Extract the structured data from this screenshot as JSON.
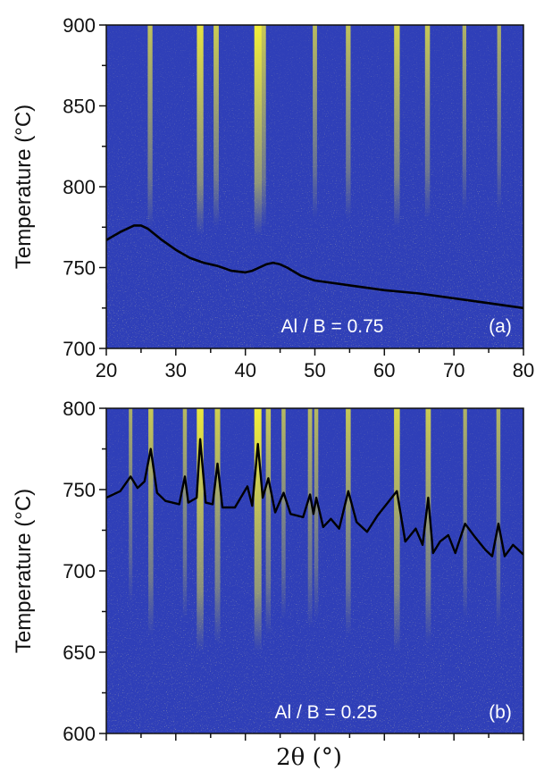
{
  "colors": {
    "background": "#2f3fb8",
    "peak": "#f2ee3a",
    "trace": "#000000"
  },
  "chart_data": [
    {
      "type": "heatmap",
      "panel_label": "(a)",
      "annotation": "Al / B = 0.75",
      "xlabel": "",
      "ylabel": "Temperature (°C)",
      "xlim": [
        20,
        80
      ],
      "ylim": [
        700,
        900
      ],
      "xticks": [
        "20",
        "30",
        "40",
        "50",
        "60",
        "70",
        "80"
      ],
      "yticks": [
        "700",
        "750",
        "800",
        "850",
        "900"
      ],
      "peaks": [
        {
          "two_theta": 26.3,
          "intensity": 0.45,
          "onset_temperature": 775
        },
        {
          "two_theta": 33.5,
          "intensity": 0.85,
          "onset_temperature": 770
        },
        {
          "two_theta": 35.8,
          "intensity": 0.55,
          "onset_temperature": 775
        },
        {
          "two_theta": 41.8,
          "intensity": 1.0,
          "onset_temperature": 770
        },
        {
          "two_theta": 42.6,
          "intensity": 0.5,
          "onset_temperature": 775
        },
        {
          "two_theta": 50.0,
          "intensity": 0.35,
          "onset_temperature": 780
        },
        {
          "two_theta": 54.8,
          "intensity": 0.45,
          "onset_temperature": 780
        },
        {
          "two_theta": 61.8,
          "intensity": 0.65,
          "onset_temperature": 775
        },
        {
          "two_theta": 66.2,
          "intensity": 0.5,
          "onset_temperature": 780
        },
        {
          "two_theta": 71.5,
          "intensity": 0.25,
          "onset_temperature": 785
        },
        {
          "two_theta": 76.5,
          "intensity": 0.25,
          "onset_temperature": 785
        }
      ],
      "pattern": {
        "x": [
          20,
          22,
          24,
          25,
          26,
          28,
          30,
          32,
          34,
          36,
          38,
          40,
          41,
          42,
          43,
          44,
          45,
          46,
          48,
          50,
          55,
          60,
          65,
          70,
          75,
          80
        ],
        "y": [
          767,
          772,
          776,
          776,
          774,
          767,
          761,
          756,
          753,
          751,
          748,
          747,
          748,
          750,
          752,
          753,
          752,
          750,
          745,
          742,
          739,
          736,
          734,
          731,
          728,
          725
        ]
      }
    },
    {
      "type": "heatmap",
      "panel_label": "(b)",
      "annotation": "Al / B = 0.25",
      "xlabel": "2θ (°)",
      "ylabel": "Temperature (°C)",
      "xlim": [
        20,
        80
      ],
      "ylim": [
        600,
        800
      ],
      "yticks": [
        "600",
        "650",
        "700",
        "750",
        "800"
      ],
      "peaks": [
        {
          "two_theta": 23.5,
          "intensity": 0.2,
          "onset_temperature": 680
        },
        {
          "two_theta": 26.4,
          "intensity": 0.5,
          "onset_temperature": 660
        },
        {
          "two_theta": 31.3,
          "intensity": 0.3,
          "onset_temperature": 670
        },
        {
          "two_theta": 33.5,
          "intensity": 0.9,
          "onset_temperature": 650
        },
        {
          "two_theta": 36.0,
          "intensity": 0.6,
          "onset_temperature": 655
        },
        {
          "two_theta": 41.8,
          "intensity": 1.0,
          "onset_temperature": 650
        },
        {
          "two_theta": 43.3,
          "intensity": 0.5,
          "onset_temperature": 660
        },
        {
          "two_theta": 45.5,
          "intensity": 0.3,
          "onset_temperature": 670
        },
        {
          "two_theta": 49.3,
          "intensity": 0.35,
          "onset_temperature": 665
        },
        {
          "two_theta": 50.2,
          "intensity": 0.3,
          "onset_temperature": 670
        },
        {
          "two_theta": 54.8,
          "intensity": 0.5,
          "onset_temperature": 660
        },
        {
          "two_theta": 61.8,
          "intensity": 0.7,
          "onset_temperature": 650
        },
        {
          "two_theta": 66.3,
          "intensity": 0.55,
          "onset_temperature": 655
        },
        {
          "two_theta": 71.6,
          "intensity": 0.25,
          "onset_temperature": 670
        },
        {
          "two_theta": 76.4,
          "intensity": 0.3,
          "onset_temperature": 665
        }
      ],
      "pattern": {
        "x": [
          20,
          22,
          23.5,
          24.5,
          25.5,
          26.4,
          27.3,
          28.5,
          30.5,
          31.3,
          31.8,
          33.0,
          33.5,
          34.3,
          35.3,
          36.0,
          36.7,
          38.5,
          40.3,
          41.0,
          41.8,
          42.5,
          43.3,
          44.3,
          45.5,
          46.5,
          48.3,
          49.3,
          49.8,
          50.2,
          51.2,
          52.3,
          53.5,
          54.8,
          56.0,
          57.5,
          59.0,
          61.8,
          63.0,
          64.5,
          65.5,
          66.3,
          67.0,
          68.0,
          69.2,
          70.2,
          71.6,
          73.0,
          74.5,
          75.5,
          76.4,
          77.3,
          78.5,
          80
        ],
        "y": [
          745,
          749,
          758,
          751,
          755,
          775,
          748,
          743,
          741,
          758,
          742,
          745,
          781,
          742,
          741,
          766,
          739,
          739,
          752,
          740,
          778,
          745,
          757,
          736,
          748,
          735,
          733,
          747,
          735,
          745,
          727,
          732,
          726,
          749,
          730,
          724,
          734,
          749,
          718,
          726,
          716,
          745,
          711,
          718,
          722,
          711,
          729,
          721,
          713,
          709,
          729,
          709,
          716,
          710
        ]
      }
    }
  ]
}
